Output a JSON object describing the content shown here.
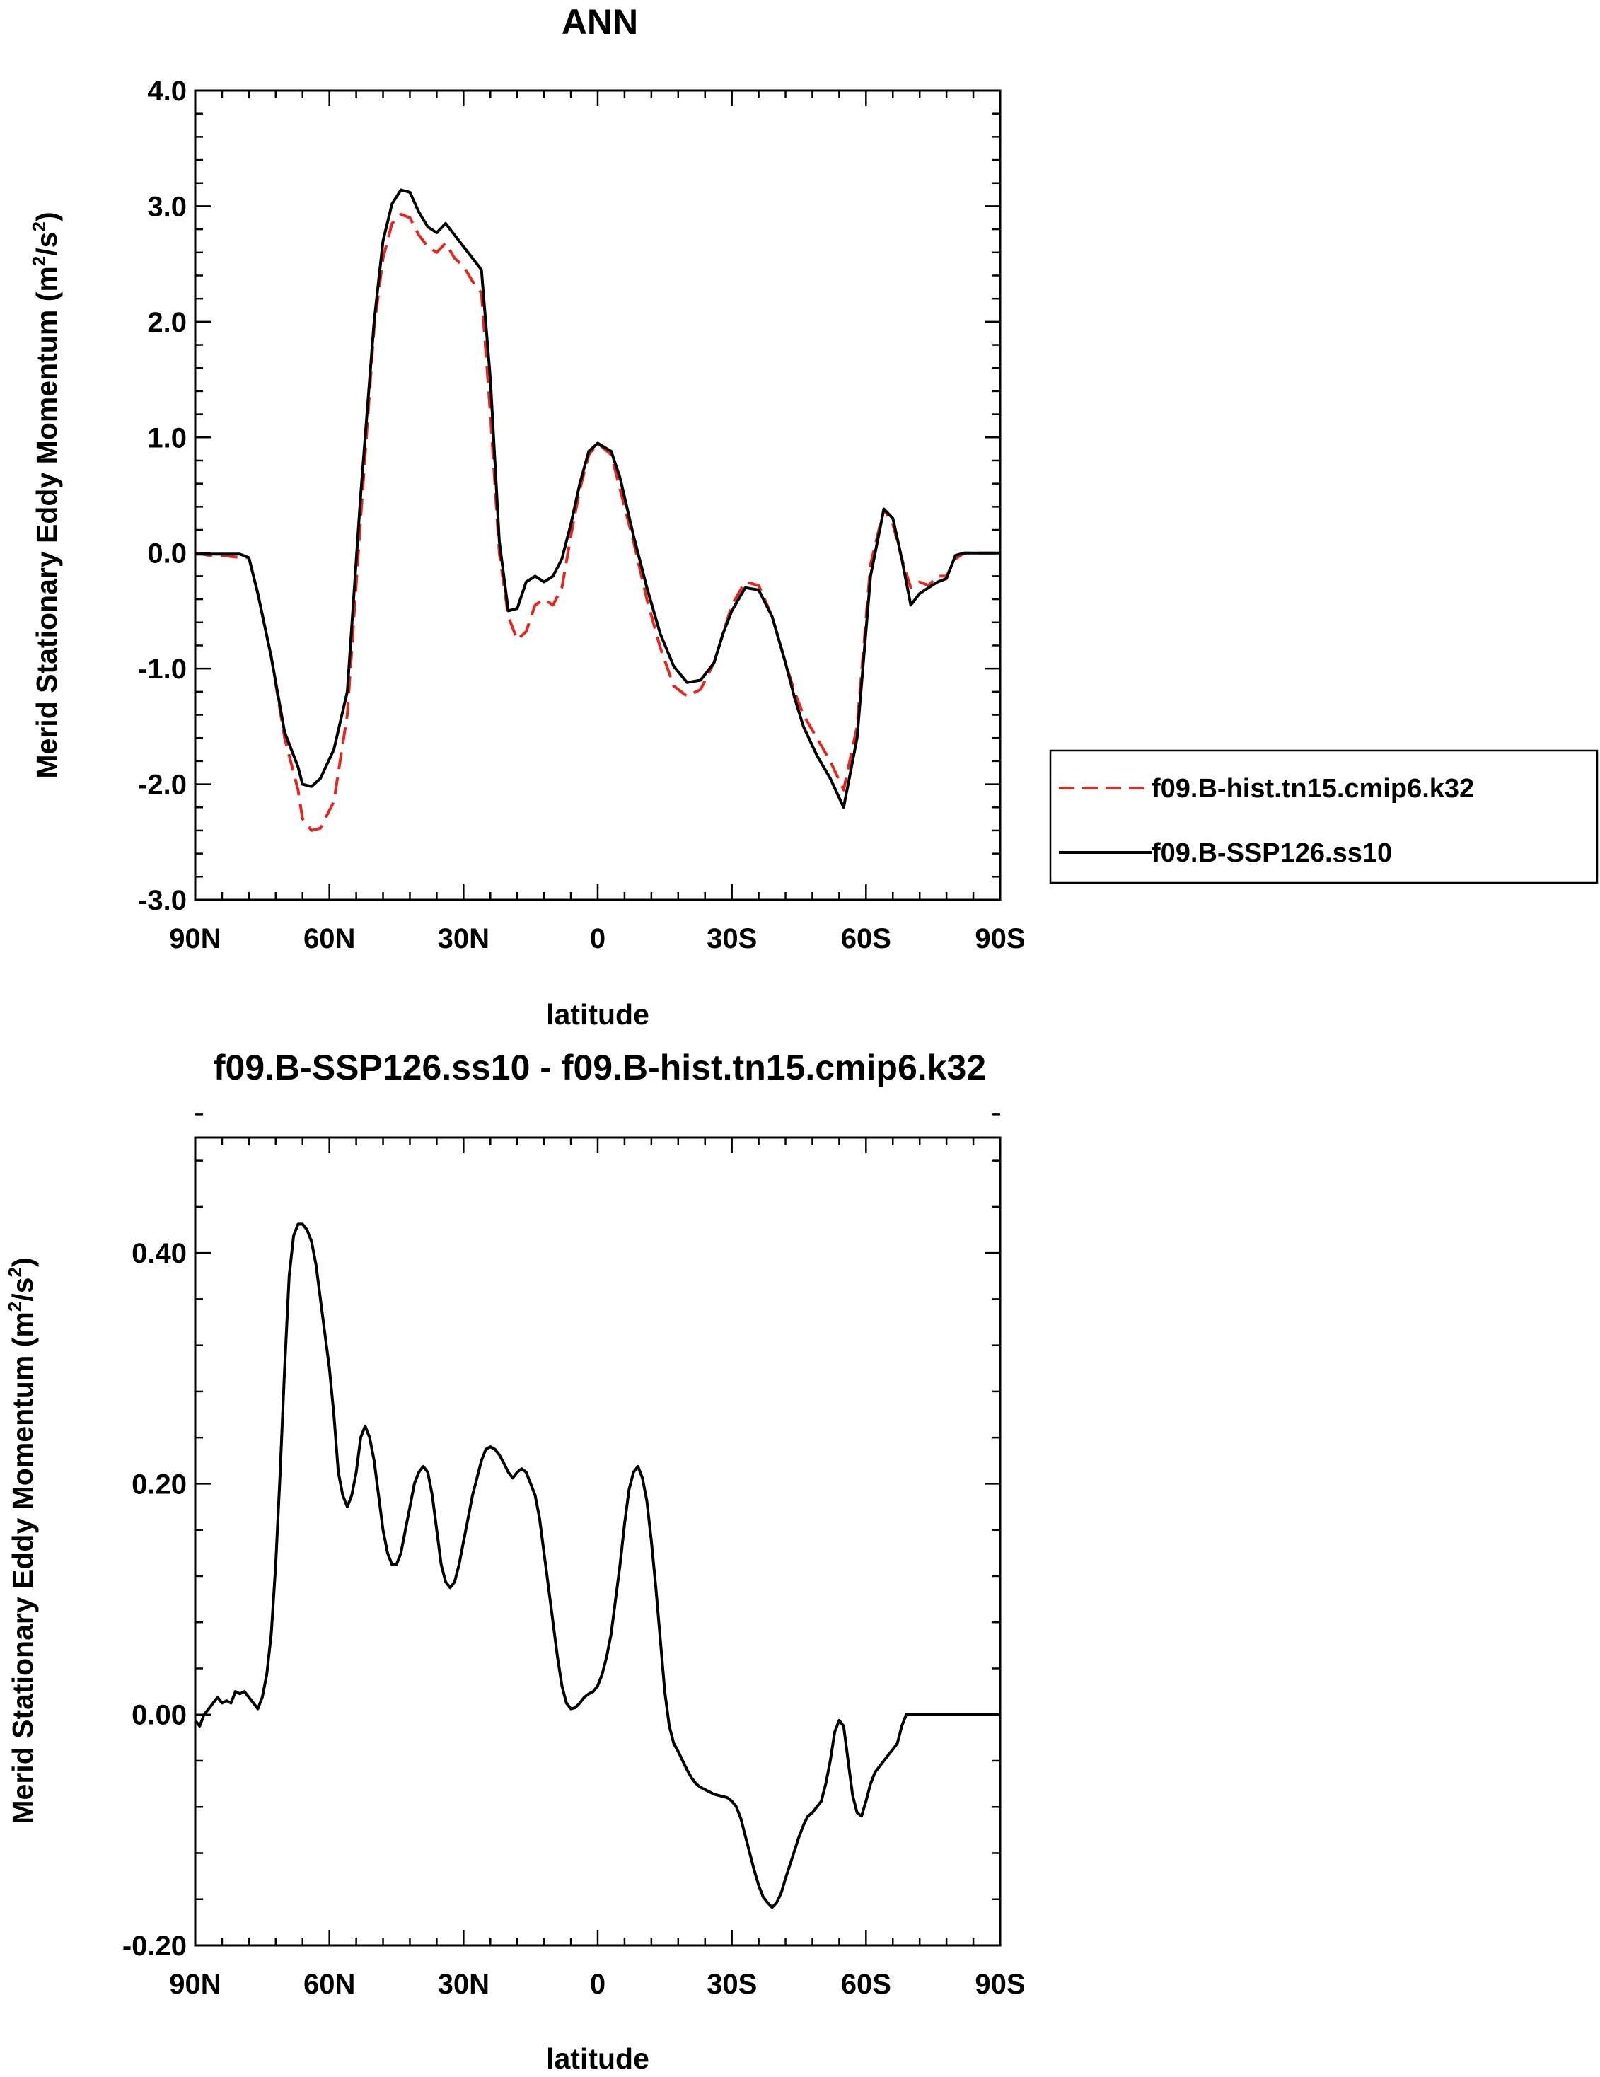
{
  "chart_data": [
    {
      "type": "line",
      "title": "ANN",
      "xlabel": "latitude",
      "ylabel": "Merid Stationary Eddy Momentum (m²/s²)",
      "ylabel_parts": [
        "Merid Stationary Eddy Momentum (m",
        "2",
        "/s",
        "2",
        ")"
      ],
      "xlim": [
        90,
        -90
      ],
      "ylim": [
        -3.0,
        4.0
      ],
      "xticks": [
        90,
        60,
        30,
        0,
        -30,
        -60,
        -90
      ],
      "xtick_labels": [
        "90N",
        "60N",
        "30N",
        "0",
        "30S",
        "60S",
        "90S"
      ],
      "yticks": [
        -3.0,
        -2.0,
        -1.0,
        0.0,
        1.0,
        2.0,
        3.0,
        4.0
      ],
      "ytick_labels": [
        "-3.0",
        "-2.0",
        "-1.0",
        "0.0",
        "1.0",
        "2.0",
        "3.0",
        "4.0"
      ],
      "legend": "right",
      "series": [
        {
          "name": "f09.B-hist.tn15.cmip6.k32",
          "color": "#e8251f",
          "dash": "dashed",
          "x": [
            90,
            87,
            84,
            80,
            78,
            76,
            73,
            70,
            67,
            66,
            64,
            62,
            59,
            56,
            53,
            50,
            48,
            46,
            44,
            42,
            40,
            38,
            36,
            34,
            32,
            30,
            28,
            26,
            24,
            22,
            20,
            18,
            16,
            14,
            12,
            10,
            8,
            6,
            4,
            2,
            0,
            -3,
            -5,
            -8,
            -11,
            -14,
            -17,
            -20,
            -23,
            -26,
            -28,
            -30,
            -33,
            -36,
            -39,
            -42,
            -44,
            -46,
            -49,
            -52,
            -55,
            -58,
            -61,
            -64,
            -66,
            -68,
            -70,
            -72,
            -74,
            -76,
            -78,
            -80,
            -82,
            -84,
            -86,
            -88,
            -90
          ],
          "values": [
            0.0,
            -0.02,
            -0.02,
            -0.04,
            -0.04,
            -0.35,
            -0.9,
            -1.6,
            -2.05,
            -2.3,
            -2.4,
            -2.38,
            -2.15,
            -1.4,
            0.3,
            1.95,
            2.55,
            2.85,
            2.93,
            2.9,
            2.75,
            2.65,
            2.6,
            2.68,
            2.55,
            2.48,
            2.35,
            2.25,
            1.2,
            0.0,
            -0.55,
            -0.75,
            -0.68,
            -0.45,
            -0.4,
            -0.45,
            -0.3,
            0.15,
            0.55,
            0.85,
            0.95,
            0.85,
            0.55,
            0.1,
            -0.4,
            -0.82,
            -1.15,
            -1.24,
            -1.18,
            -0.95,
            -0.7,
            -0.45,
            -0.25,
            -0.28,
            -0.55,
            -0.95,
            -1.2,
            -1.4,
            -1.6,
            -1.8,
            -2.05,
            -1.5,
            -0.1,
            0.38,
            0.25,
            -0.05,
            -0.3,
            -0.25,
            -0.28,
            -0.2,
            -0.2,
            -0.05,
            0.0,
            0.0,
            0.0,
            0.0,
            0.0
          ]
        },
        {
          "name": "f09.B-SSP126.ss10",
          "color": "#000000",
          "dash": "solid",
          "x": [
            90,
            87,
            84,
            80,
            78,
            76,
            73,
            70,
            67,
            66,
            64,
            62,
            59,
            56,
            53,
            50,
            48,
            46,
            44,
            42,
            40,
            38,
            36,
            34,
            32,
            30,
            28,
            26,
            24,
            22,
            20,
            18,
            16,
            14,
            12,
            10,
            8,
            6,
            4,
            2,
            0,
            -3,
            -5,
            -8,
            -11,
            -14,
            -17,
            -20,
            -23,
            -26,
            -28,
            -30,
            -33,
            -36,
            -39,
            -42,
            -44,
            -46,
            -49,
            -52,
            -55,
            -58,
            -61,
            -64,
            -66,
            -68,
            -70,
            -72,
            -74,
            -76,
            -78,
            -80,
            -82,
            -84,
            -86,
            -88,
            -90
          ],
          "values": [
            -0.01,
            -0.01,
            -0.01,
            -0.01,
            -0.04,
            -0.35,
            -0.9,
            -1.55,
            -1.85,
            -2.0,
            -2.02,
            -1.95,
            -1.7,
            -1.2,
            0.5,
            2.0,
            2.7,
            3.02,
            3.14,
            3.12,
            2.95,
            2.82,
            2.77,
            2.85,
            2.75,
            2.65,
            2.55,
            2.45,
            1.5,
            0.1,
            -0.5,
            -0.48,
            -0.25,
            -0.2,
            -0.25,
            -0.2,
            -0.05,
            0.25,
            0.6,
            0.88,
            0.95,
            0.88,
            0.65,
            0.15,
            -0.3,
            -0.7,
            -0.98,
            -1.12,
            -1.1,
            -0.95,
            -0.7,
            -0.5,
            -0.3,
            -0.32,
            -0.55,
            -0.95,
            -1.25,
            -1.5,
            -1.75,
            -1.95,
            -2.2,
            -1.6,
            -0.2,
            0.38,
            0.3,
            -0.05,
            -0.45,
            -0.35,
            -0.3,
            -0.25,
            -0.22,
            -0.02,
            0.0,
            0.0,
            0.0,
            0.0,
            0.0
          ]
        }
      ]
    },
    {
      "type": "line",
      "title": "f09.B-SSP126.ss10 - f09.B-hist.tn15.cmip6.k32",
      "xlabel": "latitude",
      "ylabel": "Merid Stationary Eddy Momentum (m²/s²)",
      "ylabel_parts": [
        "Merid Stationary Eddy Momentum (m",
        "2",
        "/s",
        "2",
        ")"
      ],
      "xlim": [
        90,
        -90
      ],
      "ylim": [
        -0.2,
        0.5
      ],
      "xticks": [
        90,
        60,
        30,
        0,
        -30,
        -60,
        -90
      ],
      "xtick_labels": [
        "90N",
        "60N",
        "30N",
        "0",
        "30S",
        "60S",
        "90S"
      ],
      "yticks": [
        -0.2,
        0.0,
        0.2,
        0.4
      ],
      "ytick_labels": [
        "-0.20",
        "0.00",
        "0.20",
        "0.40"
      ],
      "series": [
        {
          "name": "",
          "color": "#000000",
          "dash": "solid",
          "x": [
            90,
            89,
            88,
            87,
            86,
            85,
            84,
            83,
            82,
            81,
            80,
            79,
            78,
            77,
            76,
            75,
            74,
            73,
            72,
            71,
            70,
            69,
            68,
            67,
            66,
            65,
            64,
            63,
            62,
            61,
            60,
            59,
            58,
            57,
            56,
            55,
            54,
            53,
            52,
            51,
            50,
            49,
            48,
            47,
            46,
            45,
            44,
            43,
            42,
            41,
            40,
            39,
            38,
            37,
            36,
            35,
            34,
            33,
            32,
            31,
            30,
            29,
            28,
            27,
            26,
            25,
            24,
            23,
            22,
            21,
            20,
            19,
            18,
            17,
            16,
            15,
            14,
            13,
            12,
            11,
            10,
            9,
            8,
            7,
            6,
            5,
            4,
            3,
            2,
            1,
            0,
            -1,
            -2,
            -3,
            -4,
            -5,
            -6,
            -7,
            -8,
            -9,
            -10,
            -11,
            -12,
            -13,
            -14,
            -15,
            -16,
            -17,
            -18,
            -19,
            -20,
            -21,
            -22,
            -23,
            -24,
            -25,
            -26,
            -27,
            -28,
            -29,
            -30,
            -31,
            -32,
            -33,
            -34,
            -35,
            -36,
            -37,
            -38,
            -39,
            -40,
            -41,
            -42,
            -43,
            -44,
            -45,
            -46,
            -47,
            -48,
            -49,
            -50,
            -51,
            -52,
            -53,
            -54,
            -55,
            -56,
            -57,
            -58,
            -59,
            -60,
            -61,
            -62,
            -63,
            -64,
            -65,
            -66,
            -67,
            -68,
            -69,
            -70,
            -71,
            -72,
            -73,
            -74,
            -75,
            -76,
            -77,
            -78,
            -79,
            -80,
            -81,
            -82,
            -83,
            -84,
            -85,
            -86,
            -87,
            -88,
            -89,
            -90
          ],
          "values": [
            -0.005,
            -0.01,
            0.0,
            0.005,
            0.01,
            0.015,
            0.01,
            0.012,
            0.01,
            0.02,
            0.018,
            0.02,
            0.015,
            0.01,
            0.005,
            0.015,
            0.035,
            0.07,
            0.13,
            0.21,
            0.3,
            0.38,
            0.415,
            0.425,
            0.425,
            0.42,
            0.41,
            0.39,
            0.36,
            0.33,
            0.3,
            0.26,
            0.21,
            0.19,
            0.18,
            0.19,
            0.21,
            0.24,
            0.25,
            0.24,
            0.22,
            0.19,
            0.16,
            0.14,
            0.13,
            0.13,
            0.14,
            0.16,
            0.18,
            0.2,
            0.21,
            0.215,
            0.21,
            0.19,
            0.16,
            0.13,
            0.115,
            0.11,
            0.115,
            0.13,
            0.15,
            0.17,
            0.19,
            0.205,
            0.22,
            0.23,
            0.232,
            0.23,
            0.225,
            0.218,
            0.21,
            0.205,
            0.21,
            0.213,
            0.21,
            0.2,
            0.19,
            0.17,
            0.14,
            0.11,
            0.08,
            0.05,
            0.025,
            0.01,
            0.005,
            0.006,
            0.01,
            0.015,
            0.018,
            0.02,
            0.025,
            0.035,
            0.05,
            0.07,
            0.1,
            0.13,
            0.165,
            0.195,
            0.21,
            0.215,
            0.205,
            0.185,
            0.15,
            0.11,
            0.065,
            0.02,
            -0.01,
            -0.025,
            -0.032,
            -0.04,
            -0.048,
            -0.055,
            -0.06,
            -0.063,
            -0.065,
            -0.067,
            -0.069,
            -0.07,
            -0.071,
            -0.072,
            -0.075,
            -0.08,
            -0.09,
            -0.105,
            -0.12,
            -0.135,
            -0.148,
            -0.158,
            -0.163,
            -0.167,
            -0.163,
            -0.155,
            -0.142,
            -0.13,
            -0.118,
            -0.106,
            -0.096,
            -0.088,
            -0.085,
            -0.08,
            -0.075,
            -0.06,
            -0.04,
            -0.015,
            -0.005,
            -0.01,
            -0.04,
            -0.07,
            -0.085,
            -0.088,
            -0.075,
            -0.06,
            -0.05,
            -0.045,
            -0.04,
            -0.035,
            -0.03,
            -0.025,
            -0.01,
            0.0,
            0.0,
            0.0,
            0.0,
            0.0,
            0.0,
            0.0,
            0.0,
            0.0,
            0.0,
            0.0,
            0.0,
            0.0,
            0.0,
            0.0,
            0.0,
            0.0,
            0.0,
            0.0,
            0.0,
            0.0,
            0.0
          ]
        }
      ]
    }
  ]
}
